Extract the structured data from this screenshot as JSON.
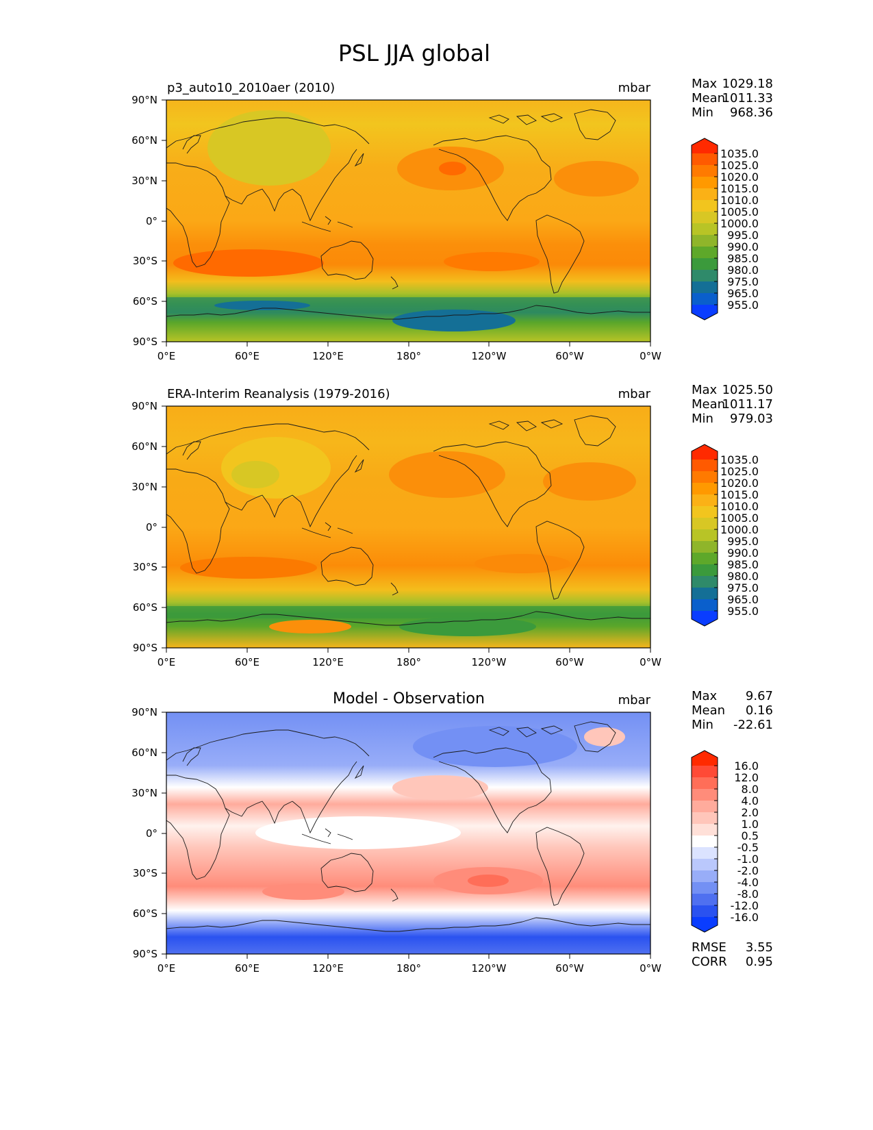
{
  "title": "PSL JJA global",
  "lon_ticks": [
    "0°E",
    "60°E",
    "120°E",
    "180°",
    "120°W",
    "60°W",
    "0°W"
  ],
  "lat_ticks": [
    "90°N",
    "60°N",
    "30°N",
    "0°",
    "30°S",
    "60°S",
    "90°S"
  ],
  "stat_labels": {
    "max": "Max",
    "mean": "Mean",
    "min": "Min",
    "rmse": "RMSE",
    "corr": "CORR"
  },
  "panels": [
    {
      "title": "p3_auto10_2010aer (2010)",
      "units": "mbar",
      "stats": {
        "max": "1029.18",
        "mean": "1011.33",
        "min": "968.36"
      },
      "cbar_labels": [
        "1035.0",
        "1025.0",
        "1020.0",
        "1015.0",
        "1010.0",
        "1005.0",
        "1000.0",
        "995.0",
        "990.0",
        "985.0",
        "980.0",
        "975.0",
        "965.0",
        "955.0"
      ],
      "cbar_colors": [
        "#ff2a00",
        "#ff5a00",
        "#ff7a00",
        "#ff9900",
        "#fbb116",
        "#f2c51e",
        "#d8c724",
        "#b8c426",
        "#8fb52a",
        "#5ea82a",
        "#3b9a3c",
        "#2f8a6a",
        "#146f96",
        "#0a5fcc",
        "#0a3dff"
      ]
    },
    {
      "title": "ERA-Interim Reanalysis (1979-2016)",
      "units": "mbar",
      "stats": {
        "max": "1025.50",
        "mean": "1011.17",
        "min": "979.03"
      },
      "cbar_labels": [
        "1035.0",
        "1025.0",
        "1020.0",
        "1015.0",
        "1010.0",
        "1005.0",
        "1000.0",
        "995.0",
        "990.0",
        "985.0",
        "980.0",
        "975.0",
        "965.0",
        "955.0"
      ],
      "cbar_colors": [
        "#ff2a00",
        "#ff5a00",
        "#ff7a00",
        "#ff9900",
        "#fbb116",
        "#f2c51e",
        "#d8c724",
        "#b8c426",
        "#8fb52a",
        "#5ea82a",
        "#3b9a3c",
        "#2f8a6a",
        "#146f96",
        "#0a5fcc",
        "#0a3dff"
      ]
    },
    {
      "title": "Model - Observation",
      "units": "mbar",
      "stats": {
        "max": "9.67",
        "mean": "0.16",
        "min": "-22.61"
      },
      "extra_stats": {
        "rmse": "3.55",
        "corr": "0.95"
      },
      "cbar_labels": [
        "16.0",
        "12.0",
        "8.0",
        "4.0",
        "2.0",
        "1.0",
        "0.5",
        "-0.5",
        "-1.0",
        "-2.0",
        "-4.0",
        "-8.0",
        "-12.0",
        "-16.0"
      ],
      "cbar_colors": [
        "#ff2a00",
        "#ff4a36",
        "#ff6e58",
        "#ff8c7a",
        "#ffab9c",
        "#ffc6ba",
        "#ffe0d8",
        "#ffffff",
        "#dbe3ff",
        "#bac8fc",
        "#98adf8",
        "#7390f4",
        "#4f70f0",
        "#2a52f0",
        "#0a3dff"
      ]
    }
  ]
}
